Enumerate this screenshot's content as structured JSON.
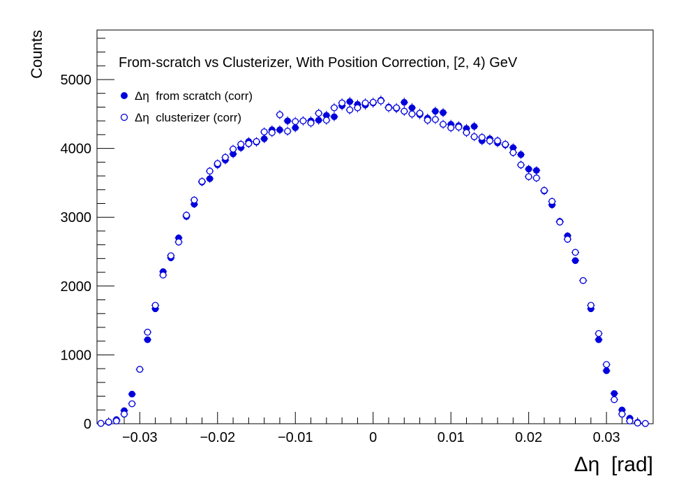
{
  "chart_data": {
    "type": "scatter",
    "title": "From-scratch vs Clusterizer, With Position Correction, [2, 4) GeV",
    "xlabel": "Δη  [rad]",
    "ylabel": "Counts",
    "xlim": [
      -0.0355,
      0.036
    ],
    "ylim": [
      0,
      5720
    ],
    "xticks": [
      -0.03,
      -0.02,
      -0.01,
      0,
      0.01,
      0.02,
      0.03
    ],
    "xtick_labels": [
      "−0.03",
      "−0.02",
      "−0.01",
      "0",
      "0.01",
      "0.02",
      "0.03"
    ],
    "yticks": [
      0,
      1000,
      2000,
      3000,
      4000,
      5000
    ],
    "ytick_labels": [
      "0",
      "1000",
      "2000",
      "3000",
      "4000",
      "5000"
    ],
    "legend_position": "top-left",
    "grid": false,
    "x": [
      -0.035,
      -0.034,
      -0.033,
      -0.032,
      -0.031,
      -0.03,
      -0.029,
      -0.028,
      -0.027,
      -0.026,
      -0.025,
      -0.024,
      -0.023,
      -0.022,
      -0.021,
      -0.02,
      -0.019,
      -0.018,
      -0.017,
      -0.016,
      -0.015,
      -0.014,
      -0.013,
      -0.012,
      -0.011,
      -0.01,
      -0.009,
      -0.008,
      -0.007,
      -0.006,
      -0.005,
      -0.004,
      -0.003,
      -0.002,
      -0.001,
      0.0,
      0.001,
      0.002,
      0.003,
      0.004,
      0.005,
      0.006,
      0.007,
      0.008,
      0.009,
      0.01,
      0.011,
      0.012,
      0.013,
      0.014,
      0.015,
      0.016,
      0.017,
      0.018,
      0.019,
      0.02,
      0.021,
      0.022,
      0.023,
      0.024,
      0.025,
      0.026,
      0.027,
      0.028,
      0.029,
      0.03,
      0.031,
      0.032,
      0.033,
      0.034,
      0.035
    ],
    "series": [
      {
        "name": "Δη  from scratch (corr)",
        "marker": "filled-circle",
        "color": "#0000dd",
        "values": [
          5,
          20,
          60,
          190,
          430,
          790,
          1220,
          1670,
          2210,
          2410,
          2700,
          3010,
          3190,
          3510,
          3560,
          3760,
          3830,
          3920,
          4010,
          4100,
          4090,
          4140,
          4270,
          4270,
          4400,
          4300,
          4400,
          4400,
          4410,
          4480,
          4460,
          4620,
          4680,
          4640,
          4630,
          4660,
          4700,
          4600,
          4580,
          4670,
          4590,
          4490,
          4440,
          4540,
          4520,
          4350,
          4330,
          4290,
          4320,
          4110,
          4140,
          4080,
          4050,
          4010,
          3910,
          3700,
          3680,
          3380,
          3180,
          2940,
          2730,
          2370,
          2080,
          1670,
          1220,
          770,
          440,
          200,
          80,
          20,
          5
        ]
      },
      {
        "name": "Δη  clusterizer (corr)",
        "marker": "open-circle",
        "color": "#0000dd",
        "values": [
          5,
          25,
          40,
          140,
          290,
          790,
          1330,
          1720,
          2160,
          2440,
          2640,
          3030,
          3250,
          3520,
          3670,
          3780,
          3870,
          3990,
          4060,
          4070,
          4100,
          4240,
          4230,
          4490,
          4250,
          4390,
          4400,
          4370,
          4510,
          4410,
          4590,
          4660,
          4560,
          4590,
          4660,
          4670,
          4690,
          4590,
          4590,
          4540,
          4500,
          4510,
          4410,
          4420,
          4350,
          4300,
          4310,
          4230,
          4170,
          4160,
          4110,
          4110,
          4060,
          3940,
          3760,
          3590,
          3570,
          3390,
          3230,
          2930,
          2680,
          2490,
          2080,
          1720,
          1310,
          860,
          350,
          140,
          40,
          10,
          3
        ]
      }
    ]
  }
}
